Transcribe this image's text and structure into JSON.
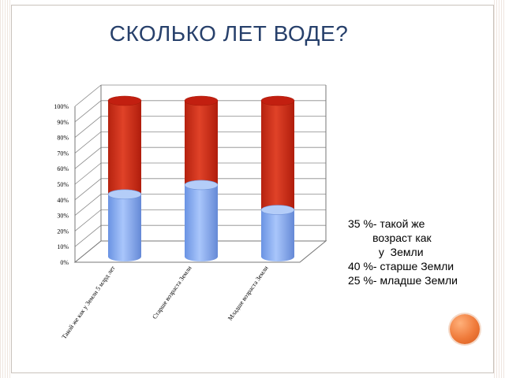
{
  "title": "СКОЛЬКО ЛЕТ ВОДЕ?",
  "legend_lines": [
    "35 %- такой же",
    "        возраст как",
    "          у  Земли",
    "40 %- старше Земли",
    "25 %- младше Земли"
  ],
  "chart_data": {
    "type": "bar",
    "stacked": true,
    "three_d": true,
    "shape": "cylinder",
    "categories": [
      "Такой же как у Земли  5 млрд лет",
      "Старше возраста Земли",
      "Младше возраста Земли"
    ],
    "series": [
      {
        "values": [
          40,
          46,
          30
        ],
        "color": "#7fa7f2"
      },
      {
        "values": [
          60,
          54,
          70
        ],
        "color": "#d2301f"
      }
    ],
    "y_ticks": [
      "0%",
      "10%",
      "20%",
      "30%",
      "40%",
      "50%",
      "60%",
      "70%",
      "80%",
      "90%",
      "100%"
    ],
    "ylim": [
      0,
      100
    ],
    "grid": true
  },
  "colors": {
    "title": "#27406b",
    "accent": "#ef7a3a"
  }
}
